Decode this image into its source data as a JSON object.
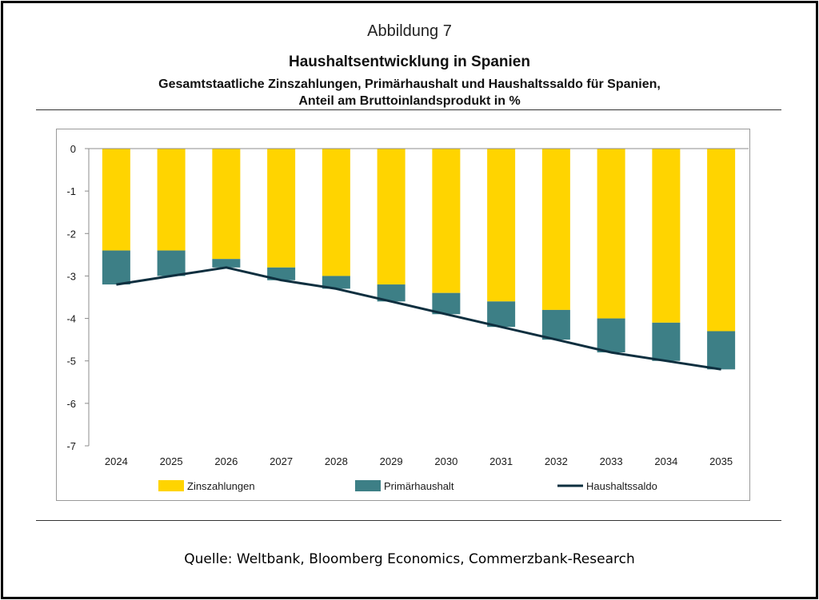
{
  "figure_label": "Abbildung 7",
  "title": "Haushaltsentwicklung in Spanien",
  "subtitle_line1": "Gesamtstaatliche Zinszahlungen, Primärhaushalt und Haushaltssaldo für Spanien,",
  "subtitle_line2": "Anteil am Bruttoinlandsprodukt in %",
  "source": "Quelle: Weltbank, Bloomberg Economics, Commerzbank-Research",
  "colors": {
    "zinszahlungen": "#FFD400",
    "primaerhaushalt": "#3D7F86",
    "haushaltssaldo": "#0E2F3F"
  },
  "chart_data": {
    "type": "bar",
    "stacked": true,
    "categories": [
      "2024",
      "2025",
      "2026",
      "2027",
      "2028",
      "2029",
      "2030",
      "2031",
      "2032",
      "2033",
      "2034",
      "2035"
    ],
    "series": [
      {
        "name": "Zinszahlungen",
        "type": "bar",
        "values": [
          -2.4,
          -2.4,
          -2.6,
          -2.8,
          -3.0,
          -3.2,
          -3.4,
          -3.6,
          -3.8,
          -4.0,
          -4.1,
          -4.3
        ]
      },
      {
        "name": "Primärhaushalt",
        "type": "bar",
        "values": [
          -0.8,
          -0.6,
          -0.2,
          -0.3,
          -0.3,
          -0.4,
          -0.5,
          -0.6,
          -0.7,
          -0.8,
          -0.9,
          -0.9
        ]
      },
      {
        "name": "Haushaltssaldo",
        "type": "line",
        "values": [
          -3.2,
          -3.0,
          -2.8,
          -3.1,
          -3.3,
          -3.6,
          -3.9,
          -4.2,
          -4.5,
          -4.8,
          -5.0,
          -5.2
        ]
      }
    ],
    "ylim": [
      -7,
      0
    ],
    "yticks": [
      "0",
      "-1",
      "-2",
      "-3",
      "-4",
      "-5",
      "-6",
      "-7"
    ],
    "grid": false,
    "legend_position": "bottom"
  }
}
